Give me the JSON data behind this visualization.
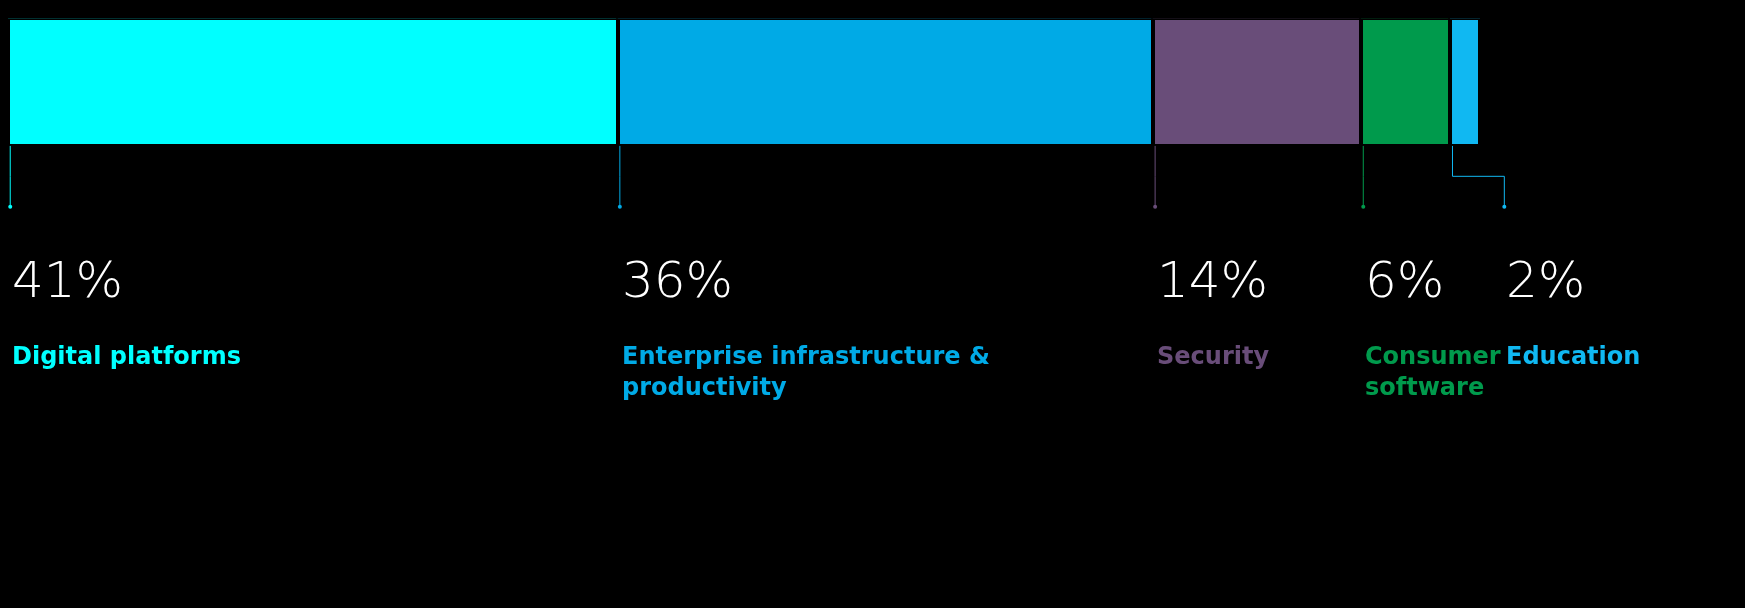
{
  "chart_data": {
    "type": "bar",
    "orientation": "horizontal",
    "stacked": true,
    "categories": [
      null
    ],
    "tick_labels": false,
    "legend": false,
    "series": [
      {
        "name": "Digital platforms",
        "color": "#00ffff",
        "values": [
          41
        ],
        "value_labels": [
          "41%"
        ]
      },
      {
        "name": "Enterprise infrastructure & productivity",
        "color": "#00aae6",
        "values": [
          36
        ],
        "value_labels": [
          "36%"
        ]
      },
      {
        "name": "Security",
        "color": "#694d79",
        "values": [
          14
        ],
        "value_labels": [
          "14%"
        ]
      },
      {
        "name": "Consumer software",
        "color": "#009a4c",
        "values": [
          6
        ],
        "value_labels": [
          "6%"
        ]
      },
      {
        "name": "Education",
        "color": "#10b8f2",
        "values": [
          2
        ],
        "value_labels": [
          "2%"
        ]
      }
    ]
  }
}
